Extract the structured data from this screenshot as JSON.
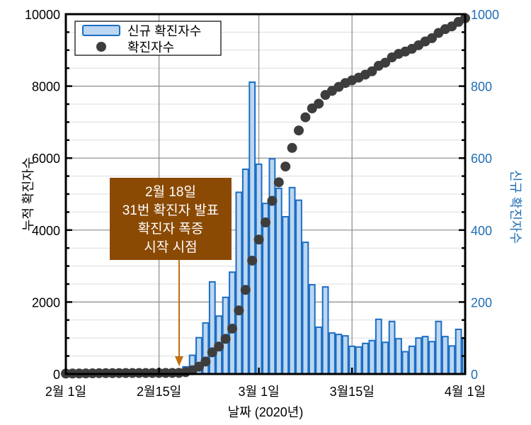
{
  "colors": {
    "bar_fill": "#bcd7f1",
    "bar_stroke": "#1c6ec4",
    "dot": "#3d3d3d",
    "right_axis": "#1f6fb4",
    "annotation_bg": "#8b4a04",
    "annotation_arrow": "#c07010",
    "grid_major": "#8a8a8a",
    "grid_minor": "#dcdcdc"
  },
  "legend": {
    "bar_label": "신규 확진자수",
    "dot_label": "확진자수"
  },
  "annotation": {
    "lines": [
      "2월 18일",
      "31번 확진자 발표",
      "확진자 폭증",
      "시작 시점"
    ],
    "arrow_date_index": 17
  },
  "chart_data": {
    "type": "bar+scatter",
    "title": "",
    "xlabel": "날짜 (2020년)",
    "ylabel_left": "누적 확진자수",
    "ylabel_right": "신규 확진자수",
    "ylim_left": [
      0,
      10000
    ],
    "ylim_right": [
      0,
      1000
    ],
    "yticks_left": [
      0,
      2000,
      4000,
      6000,
      8000,
      10000
    ],
    "yticks_right": [
      0,
      200,
      400,
      600,
      800,
      1000
    ],
    "xticks": [
      {
        "label": "2월 1일",
        "index": 0
      },
      {
        "label": "2월15일",
        "index": 14
      },
      {
        "label": "3월 1일",
        "index": 29
      },
      {
        "label": "3월15일",
        "index": 43
      },
      {
        "label": "4월 1일",
        "index": 60
      }
    ],
    "grid": true,
    "legend_position": "upper left",
    "x": [
      "2/1",
      "2/2",
      "2/3",
      "2/4",
      "2/5",
      "2/6",
      "2/7",
      "2/8",
      "2/9",
      "2/10",
      "2/11",
      "2/12",
      "2/13",
      "2/14",
      "2/15",
      "2/16",
      "2/17",
      "2/18",
      "2/19",
      "2/20",
      "2/21",
      "2/22",
      "2/23",
      "2/24",
      "2/25",
      "2/26",
      "2/27",
      "2/28",
      "2/29",
      "3/1",
      "3/2",
      "3/3",
      "3/4",
      "3/5",
      "3/6",
      "3/7",
      "3/8",
      "3/9",
      "3/10",
      "3/11",
      "3/12",
      "3/13",
      "3/14",
      "3/15",
      "3/16",
      "3/17",
      "3/18",
      "3/19",
      "3/20",
      "3/21",
      "3/22",
      "3/23",
      "3/24",
      "3/25",
      "3/26",
      "3/27",
      "3/28",
      "3/29",
      "3/30",
      "3/31",
      "4/1"
    ],
    "series": [
      {
        "name": "신규 확진자수",
        "axis": "right",
        "type": "bar",
        "values": [
          0,
          0,
          0,
          0,
          0,
          0,
          0,
          0,
          0,
          0,
          0,
          0,
          0,
          0,
          0,
          0,
          0,
          0,
          20,
          52,
          101,
          142,
          256,
          161,
          213,
          283,
          505,
          569,
          811,
          583,
          474,
          598,
          516,
          437,
          518,
          483,
          366,
          248,
          130,
          242,
          114,
          110,
          106,
          77,
          75,
          85,
          93,
          152,
          88,
          146,
          98,
          62,
          77,
          100,
          104,
          90,
          146,
          104,
          78,
          124,
          100
        ]
      },
      {
        "name": "확진자수",
        "axis": "left",
        "type": "scatter",
        "values": [
          12,
          15,
          15,
          16,
          19,
          23,
          24,
          24,
          25,
          27,
          28,
          28,
          28,
          28,
          28,
          29,
          30,
          31,
          51,
          104,
          204,
          346,
          602,
          763,
          977,
          1261,
          1766,
          2337,
          3150,
          3736,
          4212,
          4812,
          5328,
          5766,
          6284,
          6767,
          7134,
          7382,
          7513,
          7755,
          7869,
          7979,
          8086,
          8162,
          8236,
          8320,
          8413,
          8565,
          8652,
          8799,
          8897,
          8961,
          9037,
          9137,
          9241,
          9332,
          9478,
          9583,
          9661,
          9786,
          9887
        ]
      }
    ]
  }
}
